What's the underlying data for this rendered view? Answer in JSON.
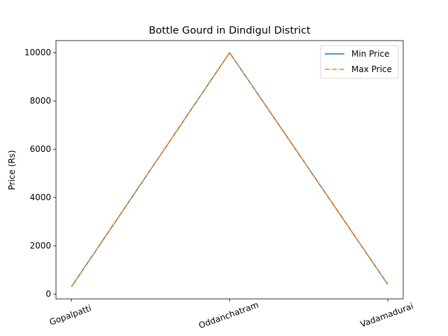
{
  "chart_data": {
    "type": "line",
    "title": "Bottle Gourd in Dindigul District",
    "xlabel": "",
    "ylabel": "Price (Rs)",
    "categories": [
      "Gopalpatti",
      "Oddanchatram",
      "Vadamadurai"
    ],
    "series": [
      {
        "name": "Min Price",
        "values": [
          300,
          10000,
          400
        ],
        "color": "#1f77b4",
        "linestyle": "solid"
      },
      {
        "name": "Max Price",
        "values": [
          300,
          10000,
          400
        ],
        "color": "#ff7f0e",
        "linestyle": "dashdot"
      }
    ],
    "yticks": [
      0,
      2000,
      4000,
      6000,
      8000,
      10000
    ],
    "ylim": [
      -200,
      10500
    ],
    "grid": false,
    "legend_position": "top-right",
    "xtick_rotation": -20
  }
}
